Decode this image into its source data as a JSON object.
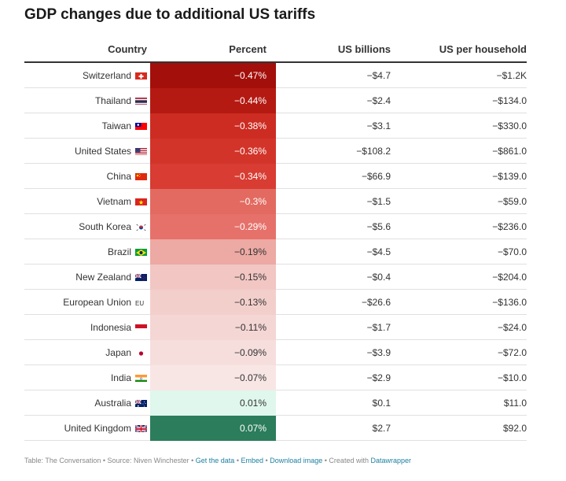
{
  "title": "GDP changes due to additional US tariffs",
  "chart_data": {
    "type": "table",
    "columns": [
      "Country",
      "Percent",
      "US billions",
      "US per household"
    ],
    "rows": [
      {
        "country": "Switzerland",
        "flag": "switzerland-flag-icon",
        "percent": -0.47,
        "percent_label": "−0.47%",
        "billions_label": "−$4.7",
        "household_label": "−$1.2K",
        "cell_color": "#a30f0a",
        "text_color": "#ffffff"
      },
      {
        "country": "Thailand",
        "flag": "thailand-flag-icon",
        "percent": -0.44,
        "percent_label": "−0.44%",
        "billions_label": "−$2.4",
        "household_label": "−$134.0",
        "cell_color": "#b41a12",
        "text_color": "#ffffff"
      },
      {
        "country": "Taiwan",
        "flag": "taiwan-flag-icon",
        "percent": -0.38,
        "percent_label": "−0.38%",
        "billions_label": "−$3.1",
        "household_label": "−$330.0",
        "cell_color": "#cc2c22",
        "text_color": "#ffffff"
      },
      {
        "country": "United States",
        "flag": "united-states-flag-icon",
        "percent": -0.36,
        "percent_label": "−0.36%",
        "billions_label": "−$108.2",
        "household_label": "−$861.0",
        "cell_color": "#d2342a",
        "text_color": "#ffffff"
      },
      {
        "country": "China",
        "flag": "china-flag-icon",
        "percent": -0.34,
        "percent_label": "−0.34%",
        "billions_label": "−$66.9",
        "household_label": "−$139.0",
        "cell_color": "#d83c32",
        "text_color": "#ffffff"
      },
      {
        "country": "Vietnam",
        "flag": "vietnam-flag-icon",
        "percent": -0.3,
        "percent_label": "−0.3%",
        "billions_label": "−$1.5",
        "household_label": "−$59.0",
        "cell_color": "#e36a60",
        "text_color": "#ffffff"
      },
      {
        "country": "South Korea",
        "flag": "south-korea-flag-icon",
        "percent": -0.29,
        "percent_label": "−0.29%",
        "billions_label": "−$5.6",
        "household_label": "−$236.0",
        "cell_color": "#e6716a",
        "text_color": "#ffffff"
      },
      {
        "country": "Brazil",
        "flag": "brazil-flag-icon",
        "percent": -0.19,
        "percent_label": "−0.19%",
        "billions_label": "−$4.5",
        "household_label": "−$70.0",
        "cell_color": "#eda9a3",
        "text_color": "#333333"
      },
      {
        "country": "New Zealand",
        "flag": "new-zealand-flag-icon",
        "percent": -0.15,
        "percent_label": "−0.15%",
        "billions_label": "−$0.4",
        "household_label": "−$204.0",
        "cell_color": "#f1c6c3",
        "text_color": "#333333"
      },
      {
        "country": "European Union",
        "flag": "EU",
        "percent": -0.13,
        "percent_label": "−0.13%",
        "billions_label": "−$26.6",
        "household_label": "−$136.0",
        "cell_color": "#f3cfcc",
        "text_color": "#333333"
      },
      {
        "country": "Indonesia",
        "flag": "indonesia-flag-icon",
        "percent": -0.11,
        "percent_label": "−0.11%",
        "billions_label": "−$1.7",
        "household_label": "−$24.0",
        "cell_color": "#f4d6d4",
        "text_color": "#333333"
      },
      {
        "country": "Japan",
        "flag": "japan-flag-icon",
        "percent": -0.09,
        "percent_label": "−0.09%",
        "billions_label": "−$3.9",
        "household_label": "−$72.0",
        "cell_color": "#f6dedd",
        "text_color": "#333333"
      },
      {
        "country": "India",
        "flag": "india-flag-icon",
        "percent": -0.07,
        "percent_label": "−0.07%",
        "billions_label": "−$2.9",
        "household_label": "−$10.0",
        "cell_color": "#f8e6e5",
        "text_color": "#333333"
      },
      {
        "country": "Australia",
        "flag": "australia-flag-icon",
        "percent": 0.01,
        "percent_label": "0.01%",
        "billions_label": "$0.1",
        "household_label": "$11.0",
        "cell_color": "#dff7ec",
        "text_color": "#333333"
      },
      {
        "country": "United Kingdom",
        "flag": "united-kingdom-flag-icon",
        "percent": 0.07,
        "percent_label": "0.07%",
        "billions_label": "$2.7",
        "household_label": "$92.0",
        "cell_color": "#2b7d5b",
        "text_color": "#ffffff"
      }
    ]
  },
  "footer": {
    "source": "Table: The Conversation • Source: Niven Winchester •",
    "get_data": "Get the data",
    "sep1": "•",
    "embed": "Embed",
    "sep2": "•",
    "download": "Download image",
    "created": "• Created with",
    "datawrapper": "Datawrapper"
  }
}
